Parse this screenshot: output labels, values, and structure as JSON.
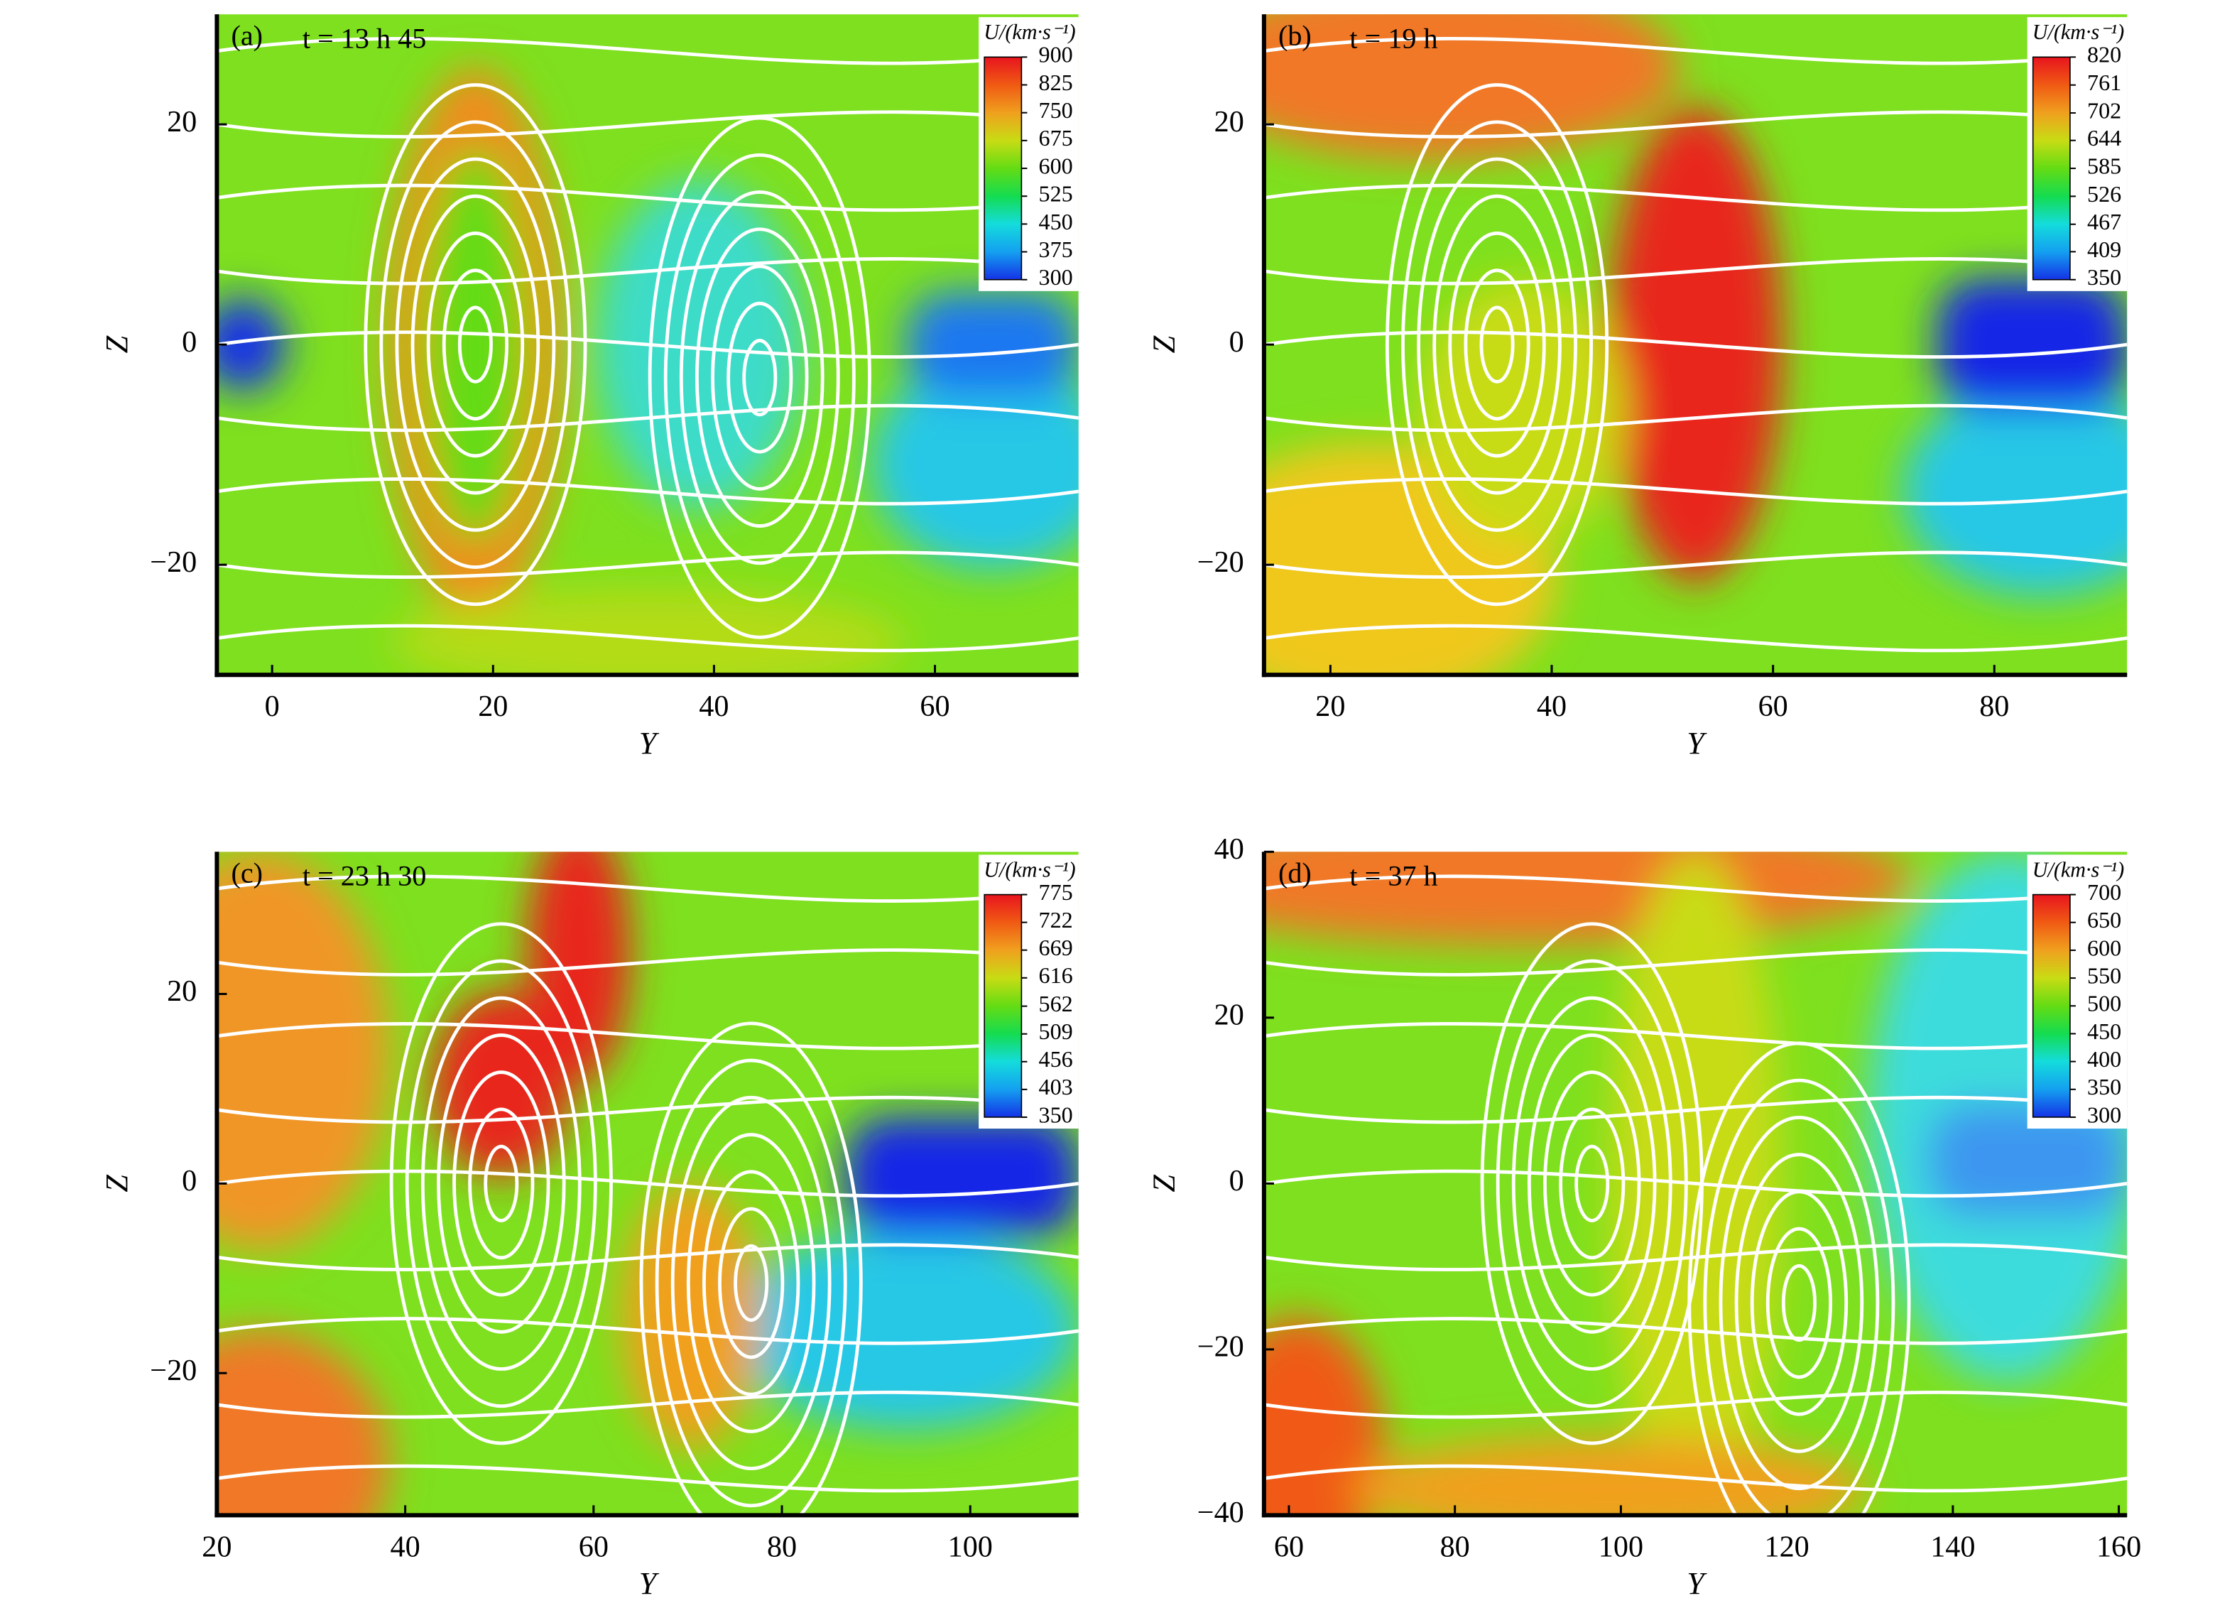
{
  "chart_data": [
    {
      "type": "contour",
      "panel": "(a)",
      "title": "t = 13 h 45",
      "xlabel": "Y",
      "ylabel": "Z",
      "xlim": [
        -5,
        73
      ],
      "ylim": [
        -30,
        30
      ],
      "xticks": [
        0,
        20,
        40,
        60
      ],
      "yticks": [
        {
          "value": -20,
          "label": "−20"
        },
        0,
        20
      ],
      "colorbar": {
        "title": "U/(km·s⁻¹)",
        "ticks": [
          900,
          825,
          750,
          675,
          600,
          525,
          450,
          375,
          300
        ],
        "colors": [
          "#e8141e",
          "#f05a14",
          "#f0a01e",
          "#c8dc14",
          "#64dc14",
          "#14dc50",
          "#14dcdc",
          "#14a0f0",
          "#1432e6"
        ]
      }
    },
    {
      "type": "contour",
      "panel": "(b)",
      "title": "t = 19 h",
      "xlabel": "Y",
      "ylabel": "Z",
      "xlim": [
        14,
        92
      ],
      "ylim": [
        -30,
        30
      ],
      "xticks": [
        20,
        40,
        60,
        80
      ],
      "yticks": [
        {
          "value": -20,
          "label": "−20"
        },
        0,
        20
      ],
      "colorbar": {
        "title": "U/(km·s⁻¹)",
        "ticks": [
          820,
          761,
          702,
          644,
          585,
          526,
          467,
          409,
          350
        ],
        "colors": [
          "#e8141e",
          "#f05a14",
          "#f0a01e",
          "#c8dc14",
          "#64dc14",
          "#14dc50",
          "#14dcdc",
          "#14a0f0",
          "#1432e6"
        ]
      }
    },
    {
      "type": "contour",
      "panel": "(c)",
      "title": "t = 23 h 30",
      "xlabel": "Y",
      "ylabel": "Z",
      "xlim": [
        20,
        111.5
      ],
      "ylim": [
        -35,
        35
      ],
      "xticks": [
        20,
        40,
        60,
        80,
        100
      ],
      "yticks": [
        {
          "value": -20,
          "label": "−20"
        },
        0,
        20
      ],
      "colorbar": {
        "title": "U/(km·s⁻¹)",
        "ticks": [
          775,
          722,
          669,
          616,
          562,
          509,
          456,
          403,
          350
        ],
        "colors": [
          "#e8141e",
          "#f05a14",
          "#f0a01e",
          "#c8dc14",
          "#64dc14",
          "#14dc50",
          "#14dcdc",
          "#14a0f0",
          "#1432e6"
        ]
      }
    },
    {
      "type": "contour",
      "panel": "(d)",
      "title": "t = 37 h",
      "xlabel": "Y",
      "ylabel": "Z",
      "xlim": [
        57,
        161
      ],
      "ylim": [
        -40,
        40
      ],
      "xticks": [
        60,
        80,
        100,
        120,
        140,
        160
      ],
      "yticks": [
        {
          "value": -40,
          "label": "−40"
        },
        {
          "value": -20,
          "label": "−20"
        },
        0,
        20,
        40
      ],
      "colorbar": {
        "title": "U/(km·s⁻¹)",
        "ticks": [
          700,
          650,
          600,
          550,
          500,
          450,
          400,
          350,
          300
        ],
        "colors": [
          "#e8141e",
          "#f05a14",
          "#f0a01e",
          "#c8dc14",
          "#64dc14",
          "#14dc50",
          "#14dcdc",
          "#14a0f0",
          "#1432e6"
        ]
      }
    }
  ]
}
